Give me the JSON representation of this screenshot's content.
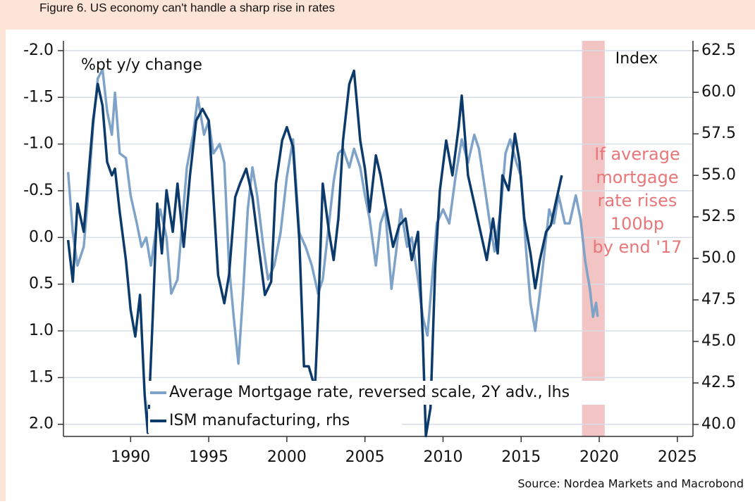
{
  "chart_data": {
    "type": "line",
    "title": "Figure 6. US economy can't handle a sharp rise in rates",
    "ylabel": "%pt y/y change",
    "y2label": "Index",
    "source": "Source: Nordea Markets and Macrobond",
    "annotations": [
      "If average",
      "mortgage",
      "rate rises",
      "100bp",
      "by end '17"
    ],
    "shaded_span": [
      2018.9,
      2020.35
    ],
    "xlim": [
      1985.7,
      2026
    ],
    "xticks": [
      1990,
      1995,
      2000,
      2005,
      2010,
      2015,
      2020,
      2025
    ],
    "ylim": [
      -2.105,
      2.13
    ],
    "y_reversed": true,
    "yticks": [
      {
        "value": -2,
        "label": "-2.0"
      },
      -1.5,
      {
        "value": -1,
        "label": "-1.0"
      },
      -0.5,
      {
        "value": 0,
        "label": "0.0"
      },
      0.5,
      {
        "value": 1,
        "label": "1.0"
      },
      1.5,
      {
        "value": 2,
        "label": "2.0"
      }
    ],
    "y2lim": [
      39.28,
      63.1
    ],
    "y2ticks": [
      {
        "value": 40,
        "label": "40.0"
      },
      42.5,
      {
        "value": 45,
        "label": "45.0"
      },
      47.5,
      {
        "value": 50,
        "label": "50.0"
      },
      52.5,
      {
        "value": 55,
        "label": "55.0"
      },
      57.5,
      {
        "value": 60,
        "label": "60.0"
      },
      62.5
    ],
    "grid": true,
    "series": [
      {
        "name": "Average Mortgage rate, reversed scale, 2Y adv., lhs",
        "color": "#7fa3c8",
        "axis": "y",
        "x": [
          1986.0,
          1986.3,
          1986.6,
          1987.0,
          1987.3,
          1987.6,
          1987.9,
          1988.2,
          1988.5,
          1988.8,
          1989.0,
          1989.3,
          1989.7,
          1990.0,
          1990.4,
          1990.7,
          1991.0,
          1991.3,
          1991.6,
          1991.9,
          1992.3,
          1992.6,
          1993.0,
          1993.3,
          1993.6,
          1994.0,
          1994.3,
          1994.7,
          1995.0,
          1995.3,
          1995.7,
          1996.0,
          1996.3,
          1996.6,
          1996.9,
          1997.2,
          1997.5,
          1997.8,
          1998.1,
          1998.5,
          1998.8,
          1999.2,
          1999.6,
          2000.0,
          2000.4,
          2000.8,
          2001.2,
          2001.6,
          2002.0,
          2002.3,
          2002.7,
          2003.0,
          2003.3,
          2003.6,
          2004.0,
          2004.3,
          2004.7,
          2005.0,
          2005.3,
          2005.7,
          2006.0,
          2006.3,
          2006.7,
          2007.0,
          2007.3,
          2007.7,
          2008.0,
          2008.4,
          2008.7,
          2009.0,
          2009.3,
          2009.6,
          2010.0,
          2010.4,
          2010.8,
          2011.2,
          2011.6,
          2012.0,
          2012.3,
          2012.7,
          2013.0,
          2013.3,
          2013.7,
          2014.0,
          2014.3,
          2014.7,
          2015.0,
          2015.3,
          2015.6,
          2015.9,
          2016.2,
          2016.5,
          2016.8,
          2017.1,
          2017.4,
          2017.8,
          2018.1,
          2018.5,
          2018.8,
          2019.1,
          2019.4,
          2019.6,
          2019.8,
          2019.9
        ],
        "values": [
          -0.7,
          -0.05,
          0.3,
          0.1,
          -0.5,
          -1.2,
          -1.7,
          -1.8,
          -1.35,
          -1.1,
          -1.55,
          -0.9,
          -0.85,
          -0.45,
          -0.15,
          0.1,
          0.0,
          0.3,
          -0.05,
          -0.3,
          0.0,
          0.6,
          0.45,
          -0.15,
          -0.75,
          -1.1,
          -1.5,
          -1.1,
          -1.25,
          -0.9,
          -1.0,
          -0.8,
          0.3,
          0.85,
          1.35,
          0.6,
          -0.3,
          -0.75,
          -0.45,
          0.1,
          0.45,
          0.3,
          -0.05,
          -0.65,
          -1.05,
          -0.05,
          0.1,
          0.3,
          0.6,
          0.45,
          -0.15,
          -0.6,
          -0.9,
          -0.95,
          -0.75,
          -0.95,
          -0.75,
          -0.45,
          -0.2,
          0.3,
          -0.15,
          -0.3,
          0.55,
          0.15,
          -0.3,
          0.1,
          0.0,
          0.45,
          0.85,
          1.05,
          0.45,
          -0.15,
          -0.3,
          -0.15,
          -0.65,
          -1.05,
          -0.8,
          -1.1,
          -0.95,
          -0.5,
          -0.15,
          0.15,
          -0.3,
          -0.9,
          -1.05,
          -0.8,
          -0.65,
          0.1,
          0.7,
          1.0,
          0.6,
          0.15,
          -0.3,
          -0.15,
          -0.45,
          -0.15,
          -0.15,
          -0.45,
          -0.2,
          0.25,
          0.55,
          0.85,
          0.7,
          0.85
        ]
      },
      {
        "name": "ISM manufacturing, rhs",
        "color": "#0c3a6a",
        "axis": "y2",
        "x": [
          1986.0,
          1986.3,
          1986.6,
          1987.0,
          1987.3,
          1987.6,
          1987.9,
          1988.2,
          1988.5,
          1988.8,
          1989.0,
          1989.3,
          1989.7,
          1990.0,
          1990.3,
          1990.6,
          1990.9,
          1991.1,
          1991.4,
          1991.7,
          1992.0,
          1992.3,
          1992.7,
          1993.0,
          1993.4,
          1993.8,
          1994.2,
          1994.6,
          1995.0,
          1995.3,
          1995.6,
          1996.0,
          1996.3,
          1996.7,
          1997.0,
          1997.4,
          1997.8,
          1998.2,
          1998.6,
          1999.0,
          1999.3,
          1999.7,
          2000.0,
          2000.4,
          2000.8,
          2001.1,
          2001.4,
          2001.8,
          2002.0,
          2002.3,
          2002.7,
          2003.0,
          2003.3,
          2003.6,
          2004.0,
          2004.3,
          2004.7,
          2005.0,
          2005.3,
          2005.7,
          2006.0,
          2006.4,
          2006.8,
          2007.2,
          2007.6,
          2008.0,
          2008.4,
          2008.7,
          2008.9,
          2009.2,
          2009.5,
          2009.8,
          2010.2,
          2010.6,
          2011.0,
          2011.2,
          2011.6,
          2012.0,
          2012.4,
          2012.8,
          2013.2,
          2013.5,
          2013.8,
          2014.2,
          2014.6,
          2014.9,
          2015.2,
          2015.6,
          2015.9,
          2016.2,
          2016.6,
          2016.9,
          2017.2,
          2017.6
        ],
        "values": [
          51.1,
          48.6,
          53.3,
          51.6,
          55.0,
          58.3,
          60.5,
          59.2,
          55.8,
          55.0,
          55.4,
          52.8,
          49.9,
          46.9,
          45.3,
          47.8,
          41.8,
          39.5,
          46.1,
          53.3,
          50.3,
          54.1,
          51.6,
          54.5,
          50.7,
          55.0,
          58.3,
          59.0,
          58.3,
          53.7,
          49.0,
          47.3,
          49.0,
          53.7,
          54.5,
          55.4,
          53.7,
          50.7,
          47.8,
          48.6,
          54.5,
          57.1,
          57.9,
          56.7,
          51.1,
          43.5,
          43.5,
          42.2,
          46.5,
          54.5,
          51.6,
          49.9,
          52.4,
          57.1,
          60.5,
          61.3,
          57.1,
          55.4,
          52.8,
          56.2,
          55.0,
          52.8,
          50.7,
          52.0,
          52.4,
          49.9,
          51.6,
          45.3,
          39.3,
          41.0,
          49.5,
          54.1,
          57.1,
          55.0,
          57.9,
          59.8,
          55.0,
          53.3,
          51.6,
          49.9,
          52.4,
          50.3,
          55.0,
          54.1,
          57.5,
          55.8,
          52.4,
          50.3,
          48.2,
          49.9,
          51.6,
          52.0,
          53.3,
          55.0
        ]
      }
    ]
  }
}
